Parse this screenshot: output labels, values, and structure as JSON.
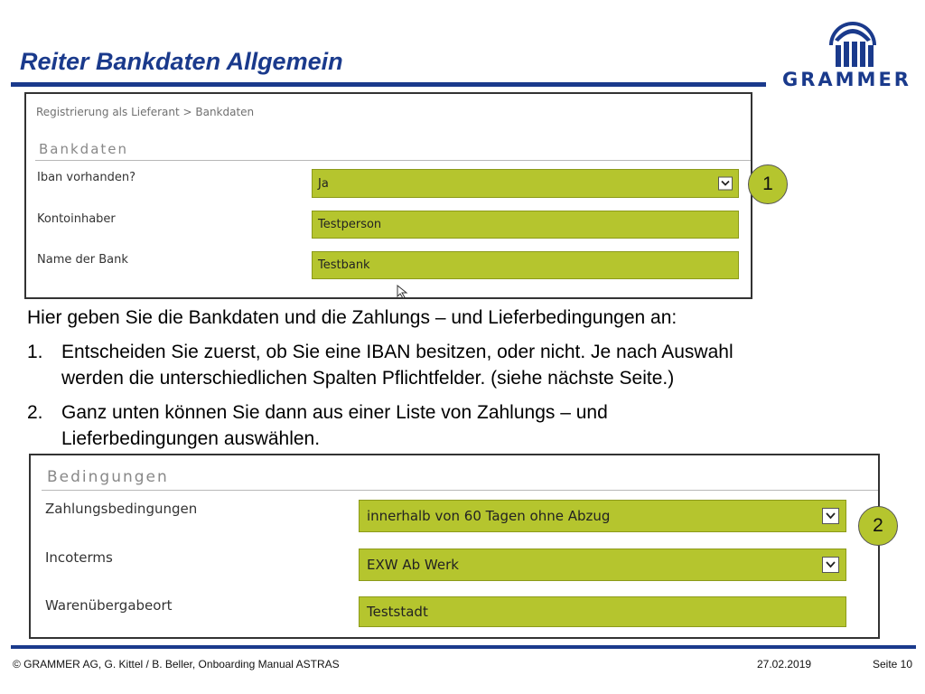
{
  "header": {
    "title": "Reiter Bankdaten Allgemein",
    "logo_text": "GRAMMER"
  },
  "panel_bank": {
    "breadcrumb": "Registrierung als Lieferant > Bankdaten",
    "section": "Bankdaten",
    "fields": [
      {
        "label": "Iban vorhanden?",
        "value": "Ja",
        "type": "select"
      },
      {
        "label": "Kontoinhaber",
        "value": "Testperson",
        "type": "text"
      },
      {
        "label": "Name der Bank",
        "value": "Testbank",
        "type": "text"
      }
    ],
    "badge": "1"
  },
  "body_text": {
    "intro": "Hier geben Sie die Bankdaten und die Zahlungs – und Lieferbedingungen an:",
    "steps": [
      {
        "num": "1.",
        "lines": [
          "Entscheiden Sie zuerst, ob Sie eine IBAN besitzen, oder nicht. Je nach Auswahl",
          "werden die unterschiedlichen Spalten Pflichtfelder. (siehe nächste Seite.)"
        ]
      },
      {
        "num": "2.",
        "lines": [
          "Ganz unten können Sie dann aus einer Liste von Zahlungs – und",
          "Lieferbedingungen auswählen."
        ]
      }
    ]
  },
  "panel_terms": {
    "section": "Bedingungen",
    "fields": [
      {
        "label": "Zahlungsbedingungen",
        "value": "innerhalb von 60 Tagen ohne Abzug",
        "type": "select"
      },
      {
        "label": "Incoterms",
        "value": "EXW Ab Werk",
        "type": "select"
      },
      {
        "label": "Warenübergabeort",
        "value": "Teststadt",
        "type": "text"
      }
    ],
    "badge": "2"
  },
  "footer": {
    "copyright": "© GRAMMER AG, G. Kittel / B. Beller, Onboarding Manual ASTRAS",
    "date": "27.02.2019",
    "page": "Seite 10"
  },
  "colors": {
    "brand_blue": "#1a3a8c",
    "field_green": "#b5c52e"
  }
}
